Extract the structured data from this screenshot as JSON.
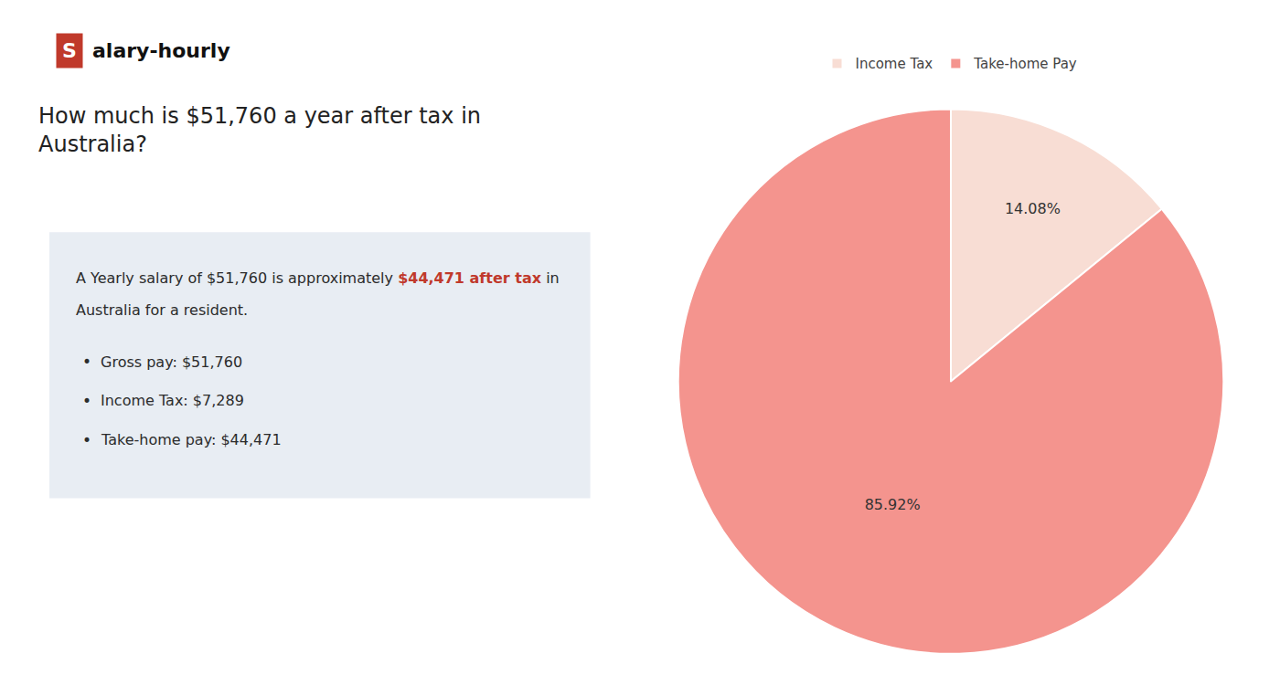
{
  "chart_data": {
    "type": "pie",
    "title": "How much is $51,760 a year after tax in\nAustralia?",
    "categories": [
      "Income Tax",
      "Take-home Pay"
    ],
    "values": [
      14.08,
      85.92
    ],
    "value_labels": [
      "14.08%",
      "85.92%"
    ],
    "colors": [
      "#f8ddd4",
      "#f4948e"
    ],
    "data_labels": true,
    "legend": "top",
    "annotations": [
      "S",
      "alary-hourly",
      "A Yearly salary of $51,760 is approximately ",
      "$44,471 after tax",
      " in",
      "Australia for a resident.",
      "•",
      "Gross pay: $51,760",
      "Income Tax: $7,289",
      "Take-home pay: $44,471"
    ]
  }
}
